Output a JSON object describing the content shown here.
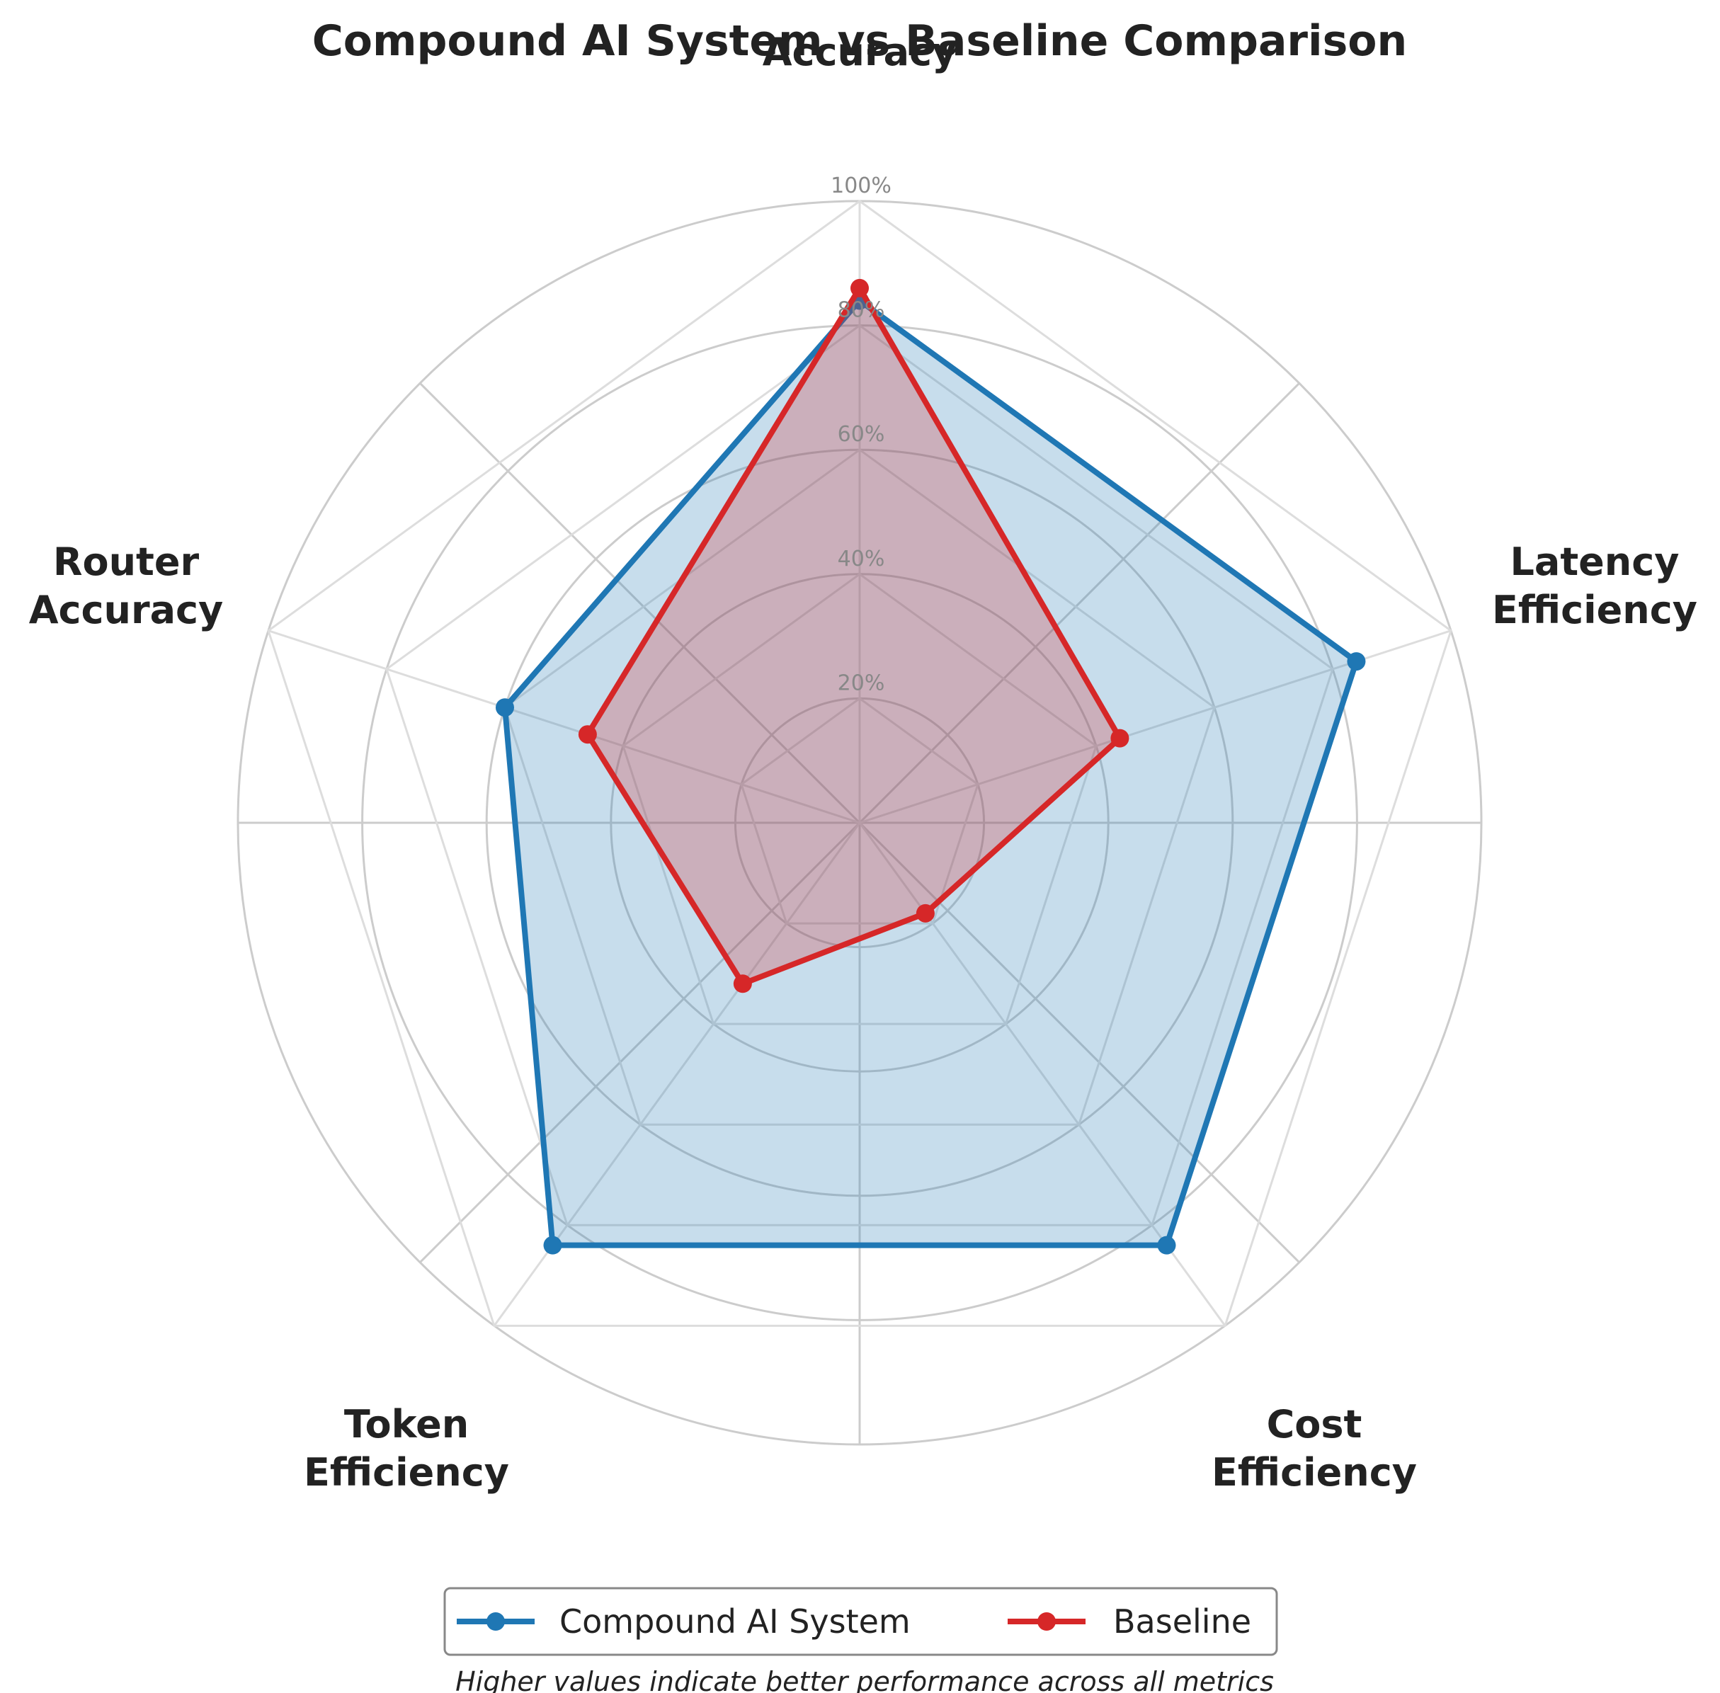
{
  "chart_data": {
    "type": "radar",
    "title": "Compound AI System vs Baseline Comparison",
    "categories": [
      [
        "Accuracy"
      ],
      [
        "Latency",
        "Efficiency"
      ],
      [
        "Cost",
        "Efficiency"
      ],
      [
        "Token",
        "Efficiency"
      ],
      [
        "Router",
        "Accuracy"
      ]
    ],
    "rlim": [
      0,
      100
    ],
    "ticks": [
      20,
      40,
      60,
      80,
      100
    ],
    "tick_labels": [
      "20%",
      "40%",
      "60%",
      "80%",
      "100%"
    ],
    "series": [
      {
        "name": "Compound AI System",
        "values": [
          84,
          84,
          84,
          84,
          60
        ],
        "color": "#1f77b4"
      },
      {
        "name": "Baseline",
        "values": [
          86,
          44,
          18,
          32,
          46
        ],
        "color": "#d62728"
      }
    ],
    "grid": true,
    "legend_position": "bottom-center",
    "caption": "Higher values indicate better performance across all metrics"
  }
}
